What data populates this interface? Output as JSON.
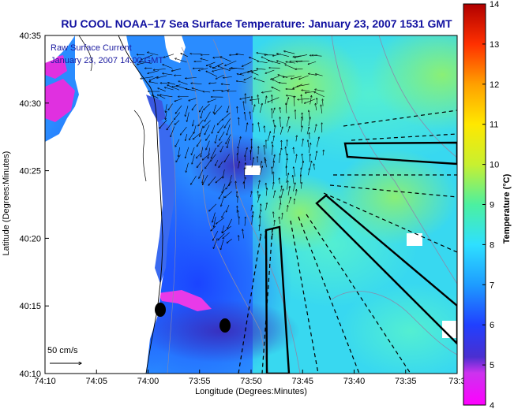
{
  "title": "RU COOL  NOAA–17  Sea Surface Temperature:  January 23, 2007 1531 GMT",
  "overlay": {
    "line1": "Raw Surface Current",
    "line2": "January 23, 2007  14:00 GMT"
  },
  "axes": {
    "xlabel": "Longitude (Degrees:Minutes)",
    "ylabel": "Latitude (Degrees:Minutes)",
    "xticks": [
      "74:10",
      "74:05",
      "74:00",
      "73:55",
      "73:50",
      "73:45",
      "73:40",
      "73:35",
      "73:3"
    ],
    "yticks": [
      "40:35",
      "40:30",
      "40:25",
      "40:20",
      "40:15",
      "40:10"
    ]
  },
  "colorbar": {
    "label": "Temperature (°C)",
    "ticks": [
      "14",
      "13",
      "12",
      "11",
      "10",
      "9",
      "8",
      "7",
      "6",
      "5",
      "4"
    ],
    "min": 4,
    "max": 14
  },
  "scale": {
    "label": "50 cm/s"
  },
  "colors": {
    "title": "#1010a0",
    "overlay_text": "#1a1aa0",
    "land": "#ffffff",
    "frame": "#000000"
  }
}
